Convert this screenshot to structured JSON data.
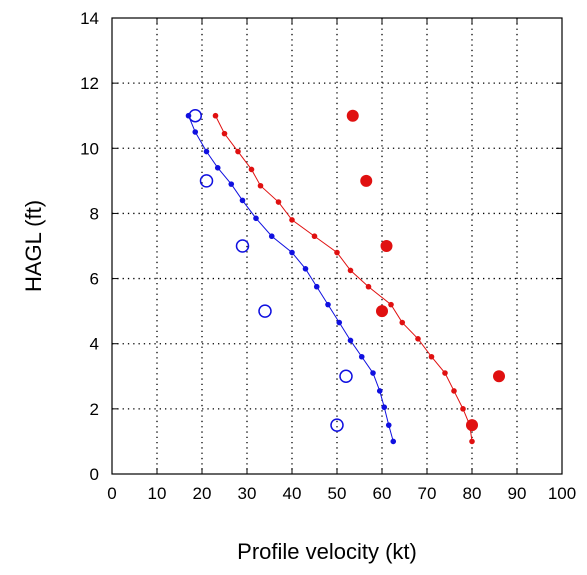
{
  "chart_data": {
    "type": "scatter",
    "title": "",
    "xlabel": "Profile velocity (kt)",
    "ylabel": "HAGL (ft)",
    "xlim": [
      0,
      100
    ],
    "ylim": [
      0,
      14
    ],
    "xticks": [
      "0",
      "10",
      "20",
      "30",
      "40",
      "50",
      "60",
      "70",
      "80",
      "90",
      "100"
    ],
    "yticks": [
      "0",
      "2",
      "4",
      "6",
      "8",
      "10",
      "12",
      "14"
    ],
    "grid": true,
    "legend": "none",
    "colors": {
      "blue": "#1010e0",
      "red": "#e01010"
    },
    "series": [
      {
        "color": "blue",
        "style": "line-small-markers",
        "points": [
          [
            17,
            11
          ],
          [
            18.5,
            10.5
          ],
          [
            21,
            9.9
          ],
          [
            23.5,
            9.4
          ],
          [
            26.5,
            8.9
          ],
          [
            29,
            8.4
          ],
          [
            32,
            7.85
          ],
          [
            35.5,
            7.3
          ],
          [
            40,
            6.8
          ],
          [
            43,
            6.3
          ],
          [
            45.5,
            5.75
          ],
          [
            48,
            5.2
          ],
          [
            50.5,
            4.65
          ],
          [
            53,
            4.1
          ],
          [
            55.5,
            3.6
          ],
          [
            58,
            3.1
          ],
          [
            59.5,
            2.55
          ],
          [
            60.5,
            2.05
          ],
          [
            61.5,
            1.5
          ],
          [
            62.5,
            1.0
          ]
        ]
      },
      {
        "color": "blue",
        "style": "open-circles",
        "points": [
          [
            18.5,
            11
          ],
          [
            21,
            9
          ],
          [
            29,
            7
          ],
          [
            34,
            5
          ],
          [
            52,
            3
          ],
          [
            50,
            1.5
          ]
        ]
      },
      {
        "color": "red",
        "style": "line-small-markers",
        "points": [
          [
            23,
            11
          ],
          [
            25,
            10.45
          ],
          [
            28,
            9.9
          ],
          [
            31,
            9.35
          ],
          [
            33,
            8.85
          ],
          [
            37,
            8.35
          ],
          [
            40,
            7.8
          ],
          [
            45,
            7.3
          ],
          [
            50,
            6.8
          ],
          [
            53,
            6.25
          ],
          [
            57,
            5.75
          ],
          [
            62,
            5.2
          ],
          [
            64.5,
            4.65
          ],
          [
            68,
            4.15
          ],
          [
            71,
            3.6
          ],
          [
            74,
            3.1
          ],
          [
            76,
            2.55
          ],
          [
            78,
            2.0
          ],
          [
            79.5,
            1.5
          ],
          [
            80,
            1.0
          ]
        ]
      },
      {
        "color": "red",
        "style": "filled-circles",
        "points": [
          [
            53.5,
            11
          ],
          [
            56.5,
            9
          ],
          [
            61,
            7
          ],
          [
            60,
            5
          ],
          [
            86,
            3
          ],
          [
            80,
            1.5
          ]
        ]
      }
    ]
  }
}
